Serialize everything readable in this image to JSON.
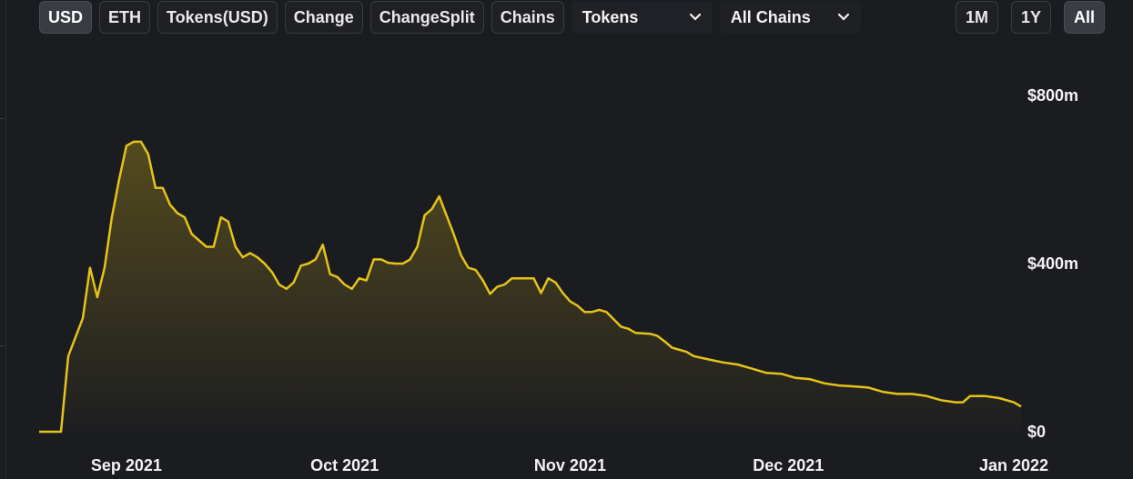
{
  "toolbar": {
    "denomination_buttons": [
      {
        "label": "USD",
        "active": true
      },
      {
        "label": "ETH",
        "active": false
      },
      {
        "label": "Tokens(USD)",
        "active": false
      },
      {
        "label": "Change",
        "active": false
      },
      {
        "label": "ChangeSplit",
        "active": false
      },
      {
        "label": "Chains",
        "active": false
      }
    ],
    "tokens_dropdown": {
      "label": "Tokens",
      "icon": "chevron-down-icon"
    },
    "chains_dropdown": {
      "label": "All Chains",
      "icon": "chevron-down-icon"
    },
    "period_buttons": [
      {
        "label": "1M",
        "active": false
      },
      {
        "label": "1Y",
        "active": false
      },
      {
        "label": "All",
        "active": true
      }
    ]
  },
  "colors": {
    "background": "#1b1c20",
    "line": "#e5c31a",
    "button_bg": "#1f2024",
    "button_active_bg": "#3a3c44"
  },
  "chart_data": {
    "type": "area",
    "title": "",
    "xlabel": "",
    "ylabel": "",
    "x_tick_labels": [
      "Sep 2021",
      "Oct 2021",
      "Nov 2021",
      "Dec 2021",
      "Jan 2022"
    ],
    "x_tick_dates": [
      "2021-09-01",
      "2021-10-01",
      "2021-11-01",
      "2021-12-01",
      "2022-01-01"
    ],
    "y_tick_labels": [
      "$0",
      "$400m",
      "$800m"
    ],
    "y_tick_values": [
      0,
      400,
      800
    ],
    "ylim": [
      0,
      800
    ],
    "xlim": [
      "2021-08-20",
      "2022-01-03"
    ],
    "y_unit": "USD millions",
    "grid": false,
    "legend": "none",
    "series": [
      {
        "points": [
          [
            "2021-08-20",
            0
          ],
          [
            "2021-08-23",
            0
          ],
          [
            "2021-08-24",
            180
          ],
          [
            "2021-08-26",
            270
          ],
          [
            "2021-08-27",
            390
          ],
          [
            "2021-08-28",
            320
          ],
          [
            "2021-08-29",
            390
          ],
          [
            "2021-08-30",
            510
          ],
          [
            "2021-08-31",
            600
          ],
          [
            "2021-09-01",
            680
          ],
          [
            "2021-09-02",
            690
          ],
          [
            "2021-09-03",
            690
          ],
          [
            "2021-09-04",
            660
          ],
          [
            "2021-09-05",
            580
          ],
          [
            "2021-09-06",
            580
          ],
          [
            "2021-09-07",
            540
          ],
          [
            "2021-09-08",
            520
          ],
          [
            "2021-09-09",
            510
          ],
          [
            "2021-09-10",
            470
          ],
          [
            "2021-09-11",
            455
          ],
          [
            "2021-09-12",
            440
          ],
          [
            "2021-09-13",
            440
          ],
          [
            "2021-09-14",
            510
          ],
          [
            "2021-09-15",
            500
          ],
          [
            "2021-09-16",
            440
          ],
          [
            "2021-09-17",
            415
          ],
          [
            "2021-09-18",
            425
          ],
          [
            "2021-09-19",
            415
          ],
          [
            "2021-09-20",
            400
          ],
          [
            "2021-09-21",
            380
          ],
          [
            "2021-09-22",
            350
          ],
          [
            "2021-09-23",
            340
          ],
          [
            "2021-09-24",
            355
          ],
          [
            "2021-09-25",
            395
          ],
          [
            "2021-09-26",
            400
          ],
          [
            "2021-09-27",
            410
          ],
          [
            "2021-09-28",
            445
          ],
          [
            "2021-09-29",
            375
          ],
          [
            "2021-09-30",
            368
          ],
          [
            "2021-10-01",
            350
          ],
          [
            "2021-10-02",
            340
          ],
          [
            "2021-10-03",
            365
          ],
          [
            "2021-10-04",
            360
          ],
          [
            "2021-10-05",
            410
          ],
          [
            "2021-10-06",
            410
          ],
          [
            "2021-10-07",
            402
          ],
          [
            "2021-10-08",
            400
          ],
          [
            "2021-10-09",
            400
          ],
          [
            "2021-10-10",
            410
          ],
          [
            "2021-10-11",
            440
          ],
          [
            "2021-10-12",
            515
          ],
          [
            "2021-10-13",
            530
          ],
          [
            "2021-10-14",
            560
          ],
          [
            "2021-10-15",
            515
          ],
          [
            "2021-10-16",
            470
          ],
          [
            "2021-10-17",
            420
          ],
          [
            "2021-10-18",
            390
          ],
          [
            "2021-10-19",
            385
          ],
          [
            "2021-10-20",
            360
          ],
          [
            "2021-10-21",
            328
          ],
          [
            "2021-10-22",
            345
          ],
          [
            "2021-10-23",
            350
          ],
          [
            "2021-10-24",
            365
          ],
          [
            "2021-10-25",
            365
          ],
          [
            "2021-10-26",
            365
          ],
          [
            "2021-10-27",
            365
          ],
          [
            "2021-10-28",
            330
          ],
          [
            "2021-10-29",
            365
          ],
          [
            "2021-10-30",
            355
          ],
          [
            "2021-10-31",
            330
          ],
          [
            "2021-11-01",
            310
          ],
          [
            "2021-11-02",
            300
          ],
          [
            "2021-11-03",
            285
          ],
          [
            "2021-11-04",
            285
          ],
          [
            "2021-11-05",
            290
          ],
          [
            "2021-11-06",
            285
          ],
          [
            "2021-11-08",
            250
          ],
          [
            "2021-11-09",
            245
          ],
          [
            "2021-11-10",
            235
          ],
          [
            "2021-11-12",
            233
          ],
          [
            "2021-11-13",
            228
          ],
          [
            "2021-11-14",
            215
          ],
          [
            "2021-11-15",
            200
          ],
          [
            "2021-11-17",
            190
          ],
          [
            "2021-11-18",
            180
          ],
          [
            "2021-11-20",
            172
          ],
          [
            "2021-11-22",
            165
          ],
          [
            "2021-11-24",
            160
          ],
          [
            "2021-11-26",
            150
          ],
          [
            "2021-11-28",
            140
          ],
          [
            "2021-11-30",
            138
          ],
          [
            "2021-12-02",
            128
          ],
          [
            "2021-12-04",
            125
          ],
          [
            "2021-12-06",
            115
          ],
          [
            "2021-12-08",
            110
          ],
          [
            "2021-12-10",
            108
          ],
          [
            "2021-12-12",
            105
          ],
          [
            "2021-12-14",
            95
          ],
          [
            "2021-12-16",
            90
          ],
          [
            "2021-12-18",
            90
          ],
          [
            "2021-12-20",
            85
          ],
          [
            "2021-12-22",
            75
          ],
          [
            "2021-12-24",
            70
          ],
          [
            "2021-12-25",
            70
          ],
          [
            "2021-12-26",
            85
          ],
          [
            "2021-12-28",
            85
          ],
          [
            "2021-12-30",
            80
          ],
          [
            "2022-01-01",
            70
          ],
          [
            "2022-01-02",
            60
          ]
        ]
      }
    ]
  }
}
